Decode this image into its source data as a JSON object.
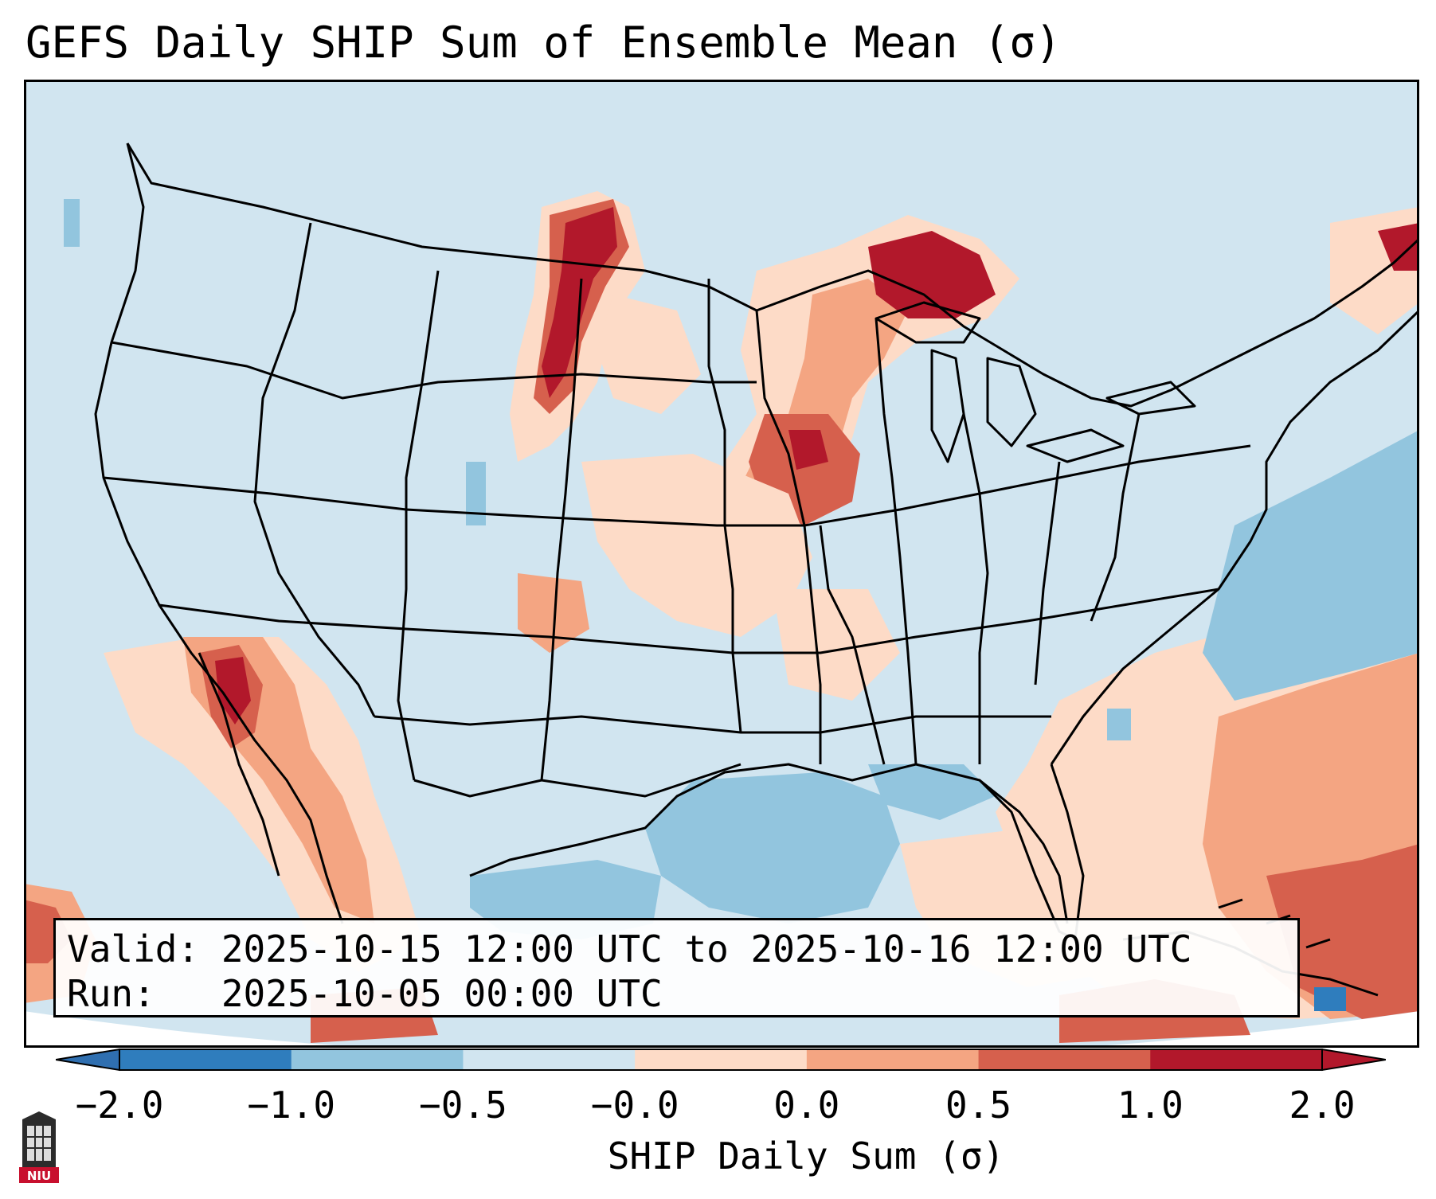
{
  "title": "GEFS Daily SHIP Sum of Ensemble Mean (σ)",
  "info": {
    "valid_line": "Valid: 2025-10-15 12:00 UTC to 2025-10-16 12:00 UTC",
    "run_line": "Run:   2025-10-05 00:00 UTC"
  },
  "colorbar": {
    "label": "SHIP Daily Sum (σ)",
    "ticks": [
      "−2.0",
      "−1.0",
      "−0.5",
      "−0.0",
      "0.0",
      "0.5",
      "1.0",
      "2.0"
    ],
    "colors": [
      "#2f7dbd",
      "#92c5de",
      "#d1e5f0",
      "#d1e5f0",
      "#fddbc7",
      "#f4a582",
      "#d6604d",
      "#b2182b"
    ],
    "extend_low_color": "#2f6fb0",
    "extend_high_color": "#b2182b"
  },
  "map": {
    "background_color": "#d1e5f0",
    "coast_and_border_color": "#000000"
  },
  "logo": {
    "text": "NIU"
  }
}
